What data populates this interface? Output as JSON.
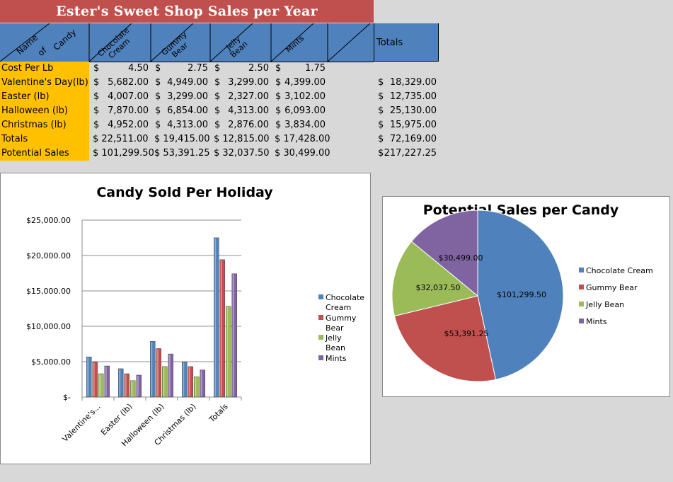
{
  "sheet": {
    "title": "Ester's Sweet Shop Sales per Year",
    "header_corner_top": "Candy",
    "header_corner_mid": "of",
    "header_corner_left": "Name",
    "col_headers": [
      "Chocolate Cream",
      "Gummy Bear",
      "Jelly Bean",
      "Mints"
    ],
    "totals_header": "Totals",
    "rows": [
      {
        "label": "Cost Per Lb",
        "cells": [
          "4.50",
          "2.75",
          "2.50",
          "1.75"
        ],
        "total": ""
      },
      {
        "label": "Valentine's Day(lb)",
        "cells": [
          "5,682.00",
          "4,949.00",
          "3,299.00",
          "4,399.00"
        ],
        "total": "18,329.00"
      },
      {
        "label": "Easter (lb)",
        "cells": [
          "4,007.00",
          "3,299.00",
          "2,327.00",
          "3,102.00"
        ],
        "total": "12,735.00"
      },
      {
        "label": "Halloween (lb)",
        "cells": [
          "7,870.00",
          "6,854.00",
          "4,313.00",
          "6,093.00"
        ],
        "total": "25,130.00"
      },
      {
        "label": "Christmas (lb)",
        "cells": [
          "4,952.00",
          "4,313.00",
          "2,876.00",
          "3,834.00"
        ],
        "total": "15,975.00"
      },
      {
        "label": "Totals",
        "cells": [
          "22,511.00",
          "19,415.00",
          "12,815.00",
          "17,428.00"
        ],
        "total": "72,169.00"
      },
      {
        "label": "Potential Sales",
        "cells": [
          "101,299.50",
          "53,391.25",
          "32,037.50",
          "30,499.00"
        ],
        "total": "217,227.25"
      }
    ],
    "currency": "$"
  },
  "chart_data": [
    {
      "type": "bar",
      "title": "Candy Sold Per Holiday",
      "categories": [
        "Valentine's...",
        "Easter (lb)",
        "Halloween (lb)",
        "Christmas (lb)",
        "Totals"
      ],
      "series": [
        {
          "name": "Chocolate Cream",
          "color": "#4f81bd",
          "values": [
            5682,
            4007,
            7870,
            4952,
            22511
          ]
        },
        {
          "name": "Gummy Bear",
          "color": "#c0504d",
          "values": [
            4949,
            3299,
            6854,
            4313,
            19415
          ]
        },
        {
          "name": "Jelly Bean",
          "color": "#9bbb59",
          "values": [
            3299,
            2327,
            4313,
            2876,
            12815
          ]
        },
        {
          "name": "Mints",
          "color": "#8064a2",
          "values": [
            4399,
            3102,
            6093,
            3834,
            17428
          ]
        }
      ],
      "ylim": [
        0,
        25000
      ],
      "yticks": [
        "$-",
        "$5,000.00",
        "$10,000.00",
        "$15,000.00",
        "$20,000.00",
        "$25,000.00"
      ],
      "grid": true,
      "legend": "right"
    },
    {
      "type": "pie",
      "title": "Potential Sales per Candy",
      "slices": [
        {
          "name": "Chocolate Cream",
          "value": 101299.5,
          "label": "$101,299.50",
          "color": "#4f81bd"
        },
        {
          "name": "Gummy Bear",
          "value": 53391.25,
          "label": "$53,391.25",
          "color": "#c0504d"
        },
        {
          "name": "Jelly Bean",
          "value": 32037.5,
          "label": "$32,037.50",
          "color": "#9bbb59"
        },
        {
          "name": "Mints",
          "value": 30499.0,
          "label": "$30,499.00",
          "color": "#8064a2"
        }
      ],
      "legend": "right"
    }
  ]
}
